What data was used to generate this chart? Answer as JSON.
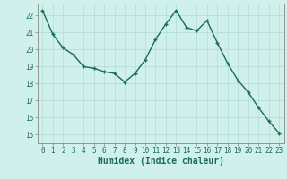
{
  "x": [
    0,
    1,
    2,
    3,
    4,
    5,
    6,
    7,
    8,
    9,
    10,
    11,
    12,
    13,
    14,
    15,
    16,
    17,
    18,
    19,
    20,
    21,
    22,
    23
  ],
  "y": [
    22.3,
    20.9,
    20.1,
    19.7,
    19.0,
    18.9,
    18.7,
    18.6,
    18.1,
    18.6,
    19.4,
    20.6,
    21.5,
    22.3,
    21.3,
    21.1,
    21.7,
    20.4,
    19.2,
    18.2,
    17.5,
    16.6,
    15.8,
    15.1
  ],
  "line_color": "#1a6b5a",
  "marker": "+",
  "bg_color": "#cff0eb",
  "grid_color": "#b0ddd5",
  "xlabel": "Humidex (Indice chaleur)",
  "ylim": [
    14.5,
    22.7
  ],
  "xlim": [
    -0.5,
    23.5
  ],
  "yticks": [
    15,
    16,
    17,
    18,
    19,
    20,
    21,
    22
  ],
  "xticks": [
    0,
    1,
    2,
    3,
    4,
    5,
    6,
    7,
    8,
    9,
    10,
    11,
    12,
    13,
    14,
    15,
    16,
    17,
    18,
    19,
    20,
    21,
    22,
    23
  ],
  "tick_color": "#1a6b5a",
  "axis_color": "#888888",
  "xlabel_fontsize": 7,
  "tick_fontsize": 5.5,
  "linewidth": 1.0,
  "markersize": 3.5,
  "markeredgewidth": 1.0
}
